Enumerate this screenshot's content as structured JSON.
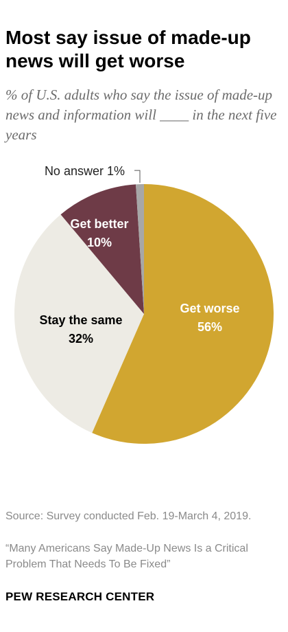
{
  "title": "Most say issue of made-up news will get worse",
  "subtitle": "% of U.S. adults who say the issue of made-up news and information will ____ in the next five years",
  "chart_data": {
    "type": "pie",
    "slices": [
      {
        "label": "Get worse",
        "value": 56,
        "value_label": "56%",
        "color": "#d1a630",
        "text_color": "#ffffff"
      },
      {
        "label": "Stay the same",
        "value": 32,
        "value_label": "32%",
        "color": "#edebe4",
        "text_color": "#000000"
      },
      {
        "label": "Get better",
        "value": 10,
        "value_label": "10%",
        "color": "#6e3b47",
        "text_color": "#ffffff"
      },
      {
        "label": "No answer",
        "value": 1,
        "value_label": "1%",
        "color": "#a7a7a7",
        "text_color": "#222222"
      }
    ]
  },
  "source": "Source: Survey conducted Feb. 19-March 4, 2019.",
  "report": "“Many Americans Say Made-Up News Is a Critical Problem That Needs To Be Fixed”",
  "org": "PEW RESEARCH CENTER"
}
